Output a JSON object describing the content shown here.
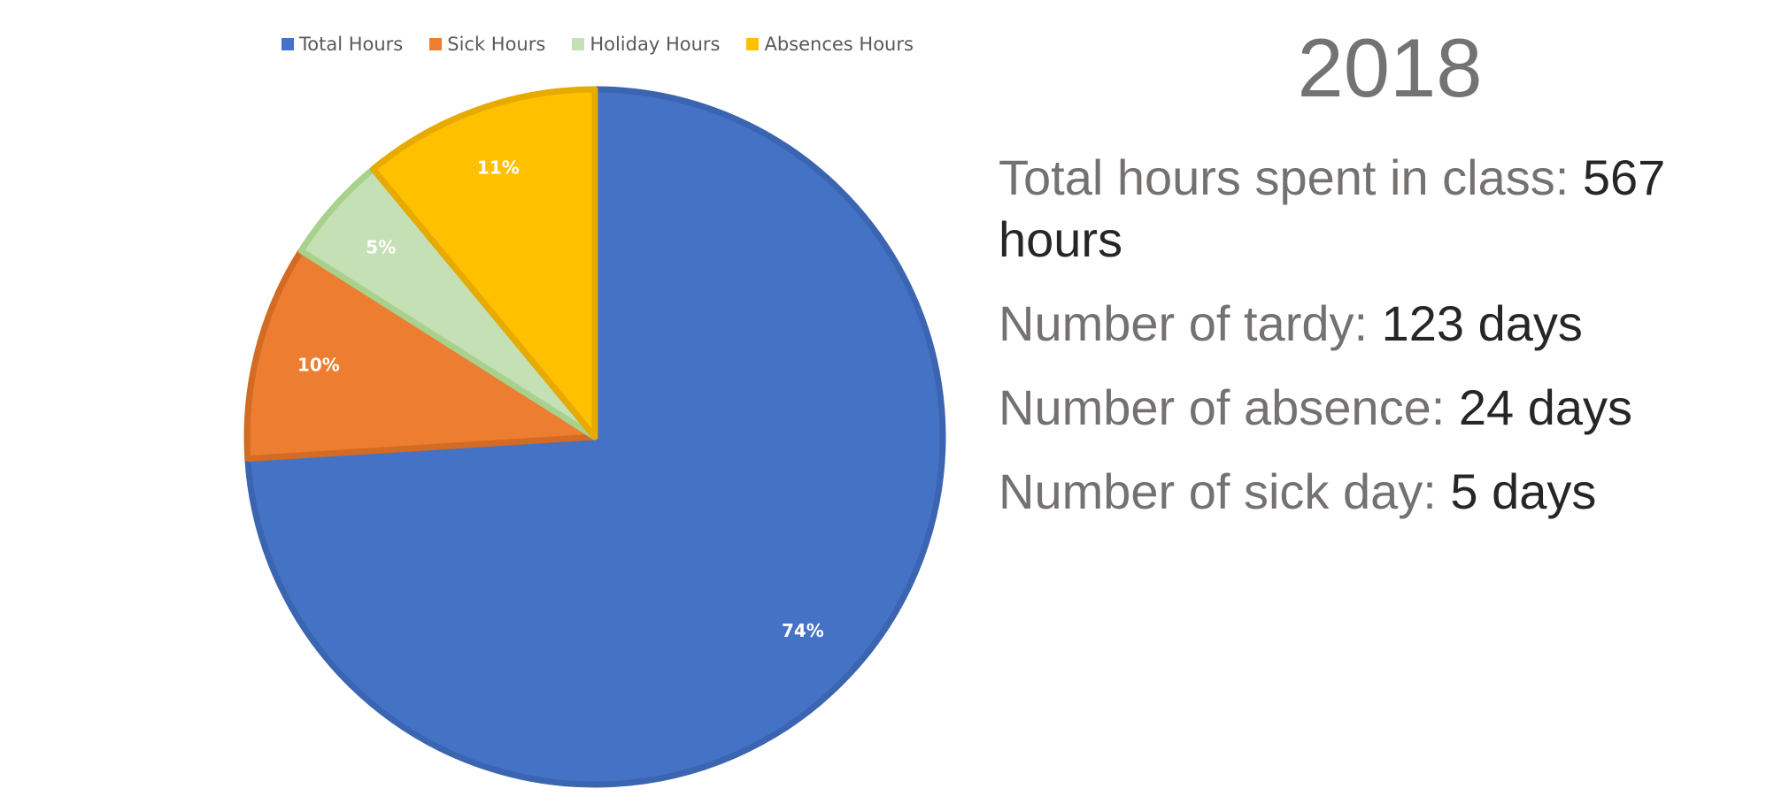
{
  "chart_data": {
    "type": "pie",
    "categories": [
      "Total Hours",
      "Sick Hours",
      "Holiday Hours",
      "Absences Hours"
    ],
    "values": [
      74,
      10,
      5,
      11
    ],
    "data_labels": [
      "74%",
      "10%",
      "5%",
      "11%"
    ],
    "colors": [
      "#4472C4",
      "#ED7D31",
      "#C5E0B4",
      "#FFC000"
    ],
    "border_colors": [
      "#3B65B1",
      "#D26B24",
      "#A9D18E",
      "#E6AA00"
    ],
    "legend_position": "top",
    "start_angle_deg": 0,
    "direction": "clockwise"
  },
  "year": "2018",
  "stats": [
    {
      "label": "Total hours spent in class: ",
      "value": "567 hours"
    },
    {
      "label": "Number of tardy: ",
      "value": "123 days"
    },
    {
      "label": "Number of absence: ",
      "value": "24 days"
    },
    {
      "label": "Number of sick day: ",
      "value": "5 days"
    }
  ]
}
